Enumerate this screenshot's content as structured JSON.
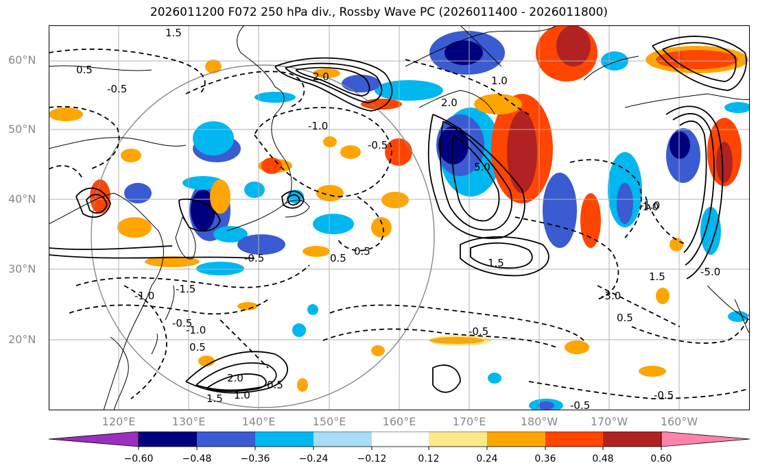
{
  "title": "2026011200 F072 250 hPa div., Rossby Wave PC (2026011400 - 2026011800)",
  "lat_labels": [
    "60°N",
    "50°N",
    "40°N",
    "30°N",
    "20°N"
  ],
  "lon_labels": [
    "120°E",
    "130°E",
    "140°E",
    "150°E",
    "160°E",
    "170°E",
    "180°W",
    "170°W",
    "160°W"
  ],
  "colorbar": {
    "ticks": [
      "−0.60",
      "−0.48",
      "−0.36",
      "−0.24",
      "−0.12",
      "0.12",
      "0.24",
      "0.36",
      "0.48",
      "0.60"
    ],
    "colors": [
      "#9a2fc0",
      "#00007f",
      "#3a5bd1",
      "#00b7f0",
      "#a9dcf8",
      "#ffffff",
      "#ffe98d",
      "#ffa500",
      "#ff4500",
      "#b22222",
      "#ff82ab"
    ]
  },
  "contour_labels": [
    "1.5",
    "0.5",
    "-0.5",
    "-1.0",
    "2.0",
    "5.0",
    "-0.5",
    "-1.0",
    "1.0",
    "-1.0",
    "-0.5",
    "0.5",
    "1.5",
    "-3.0",
    "-0.5",
    "2.0",
    "1.5",
    "1.0",
    "0.5",
    "0.5",
    "-0.5",
    "-1.0",
    "0.5",
    "-1.5",
    "1.5",
    "-5.0",
    "-0.5",
    "-1.0",
    "0.5",
    "2.0",
    "-0.5"
  ],
  "colors": {
    "grid": "#b0b0b0",
    "coast": "#000000",
    "contour": "#000000"
  }
}
